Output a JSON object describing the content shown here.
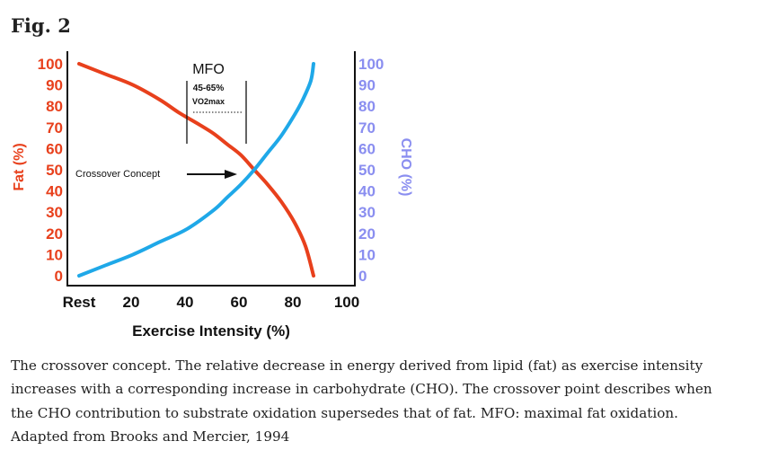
{
  "figure": {
    "title": "Fig. 2"
  },
  "chart_data": {
    "type": "line",
    "xlabel": "Exercise Intensity (%)",
    "ylabel": "Fat (%)",
    "ylabel_right": "CHO (%)",
    "xlim": [
      0,
      100
    ],
    "ylim": [
      0,
      100
    ],
    "x_ticks": [
      "Rest",
      "20",
      "40",
      "60",
      "80",
      "100"
    ],
    "x_tick_values": [
      0,
      20,
      40,
      60,
      80,
      100
    ],
    "y_ticks": [
      "0",
      "10",
      "20",
      "30",
      "40",
      "50",
      "60",
      "70",
      "80",
      "90",
      "100"
    ],
    "grid": false,
    "series": [
      {
        "name": "Fat (%)",
        "axis": "left",
        "color": "#e8401c",
        "x": [
          0,
          10,
          20,
          30,
          37,
          45,
          50,
          55,
          60,
          65,
          70,
          75,
          80,
          84,
          87
        ],
        "y": [
          100,
          95,
          90,
          83,
          77,
          71,
          67,
          62,
          57,
          50,
          43,
          35,
          25,
          14,
          0
        ]
      },
      {
        "name": "CHO (%)",
        "axis": "right",
        "color": "#1fa8e8",
        "x": [
          0,
          10,
          20,
          30,
          40,
          50,
          55,
          60,
          65,
          70,
          75,
          80,
          83,
          86,
          87
        ],
        "y": [
          0,
          5,
          10,
          16,
          22,
          31,
          37,
          43,
          50,
          58,
          66,
          76,
          83,
          92,
          100
        ]
      }
    ],
    "annotations": {
      "mfo_label": "MFO",
      "mfo_range": "45-65%",
      "mfo_vo2": "VO2max",
      "mfo_x": [
        40,
        62
      ],
      "crossover_label": "Crossover Concept",
      "crossover_point": [
        65,
        50
      ]
    },
    "colors": {
      "fat": "#e8401c",
      "cho": "#1fa8e8",
      "cho_axis": "#8a8ef0"
    }
  },
  "caption": {
    "lines": [
      "The crossover concept. The relative decrease in energy derived from lipid (fat) as exercise intensity",
      "increases with a corresponding increase in carbohydrate (CHO). The crossover point describes when",
      "the CHO contribution to substrate oxidation supersedes that of fat. MFO: maximal fat oxidation.",
      "Adapted from Brooks and Mercier, 1994"
    ]
  }
}
